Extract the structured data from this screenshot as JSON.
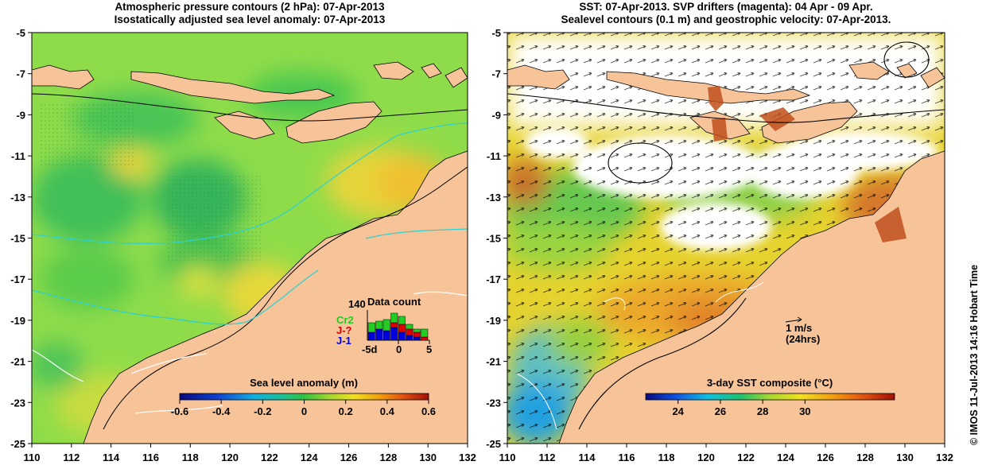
{
  "left_panel": {
    "title_line1": "Atmospheric pressure contours (2 hPa): 07-Apr-2013",
    "title_line2": "Isostatically adjusted sea level anomaly: 07-Apr-2013",
    "colorbar": {
      "title": "Sea level anomaly (m)",
      "tick_labels": [
        "-0.6",
        "-0.4",
        "-0.2",
        "0",
        "0.2",
        "0.4",
        "0.6"
      ]
    },
    "data_count": {
      "title": "Data count",
      "max_label": "140",
      "x_ticks": [
        "-5d",
        "0",
        "5"
      ],
      "missions": [
        {
          "name": "Cr2",
          "color": "#22cc22"
        },
        {
          "name": "J-?",
          "color": "#dd0000"
        },
        {
          "name": "J-1",
          "color": "#0000dd"
        }
      ]
    }
  },
  "right_panel": {
    "title_line1": "SST: 07-Apr-2013. SVP drifters (magenta): 04 Apr - 09 Apr.",
    "title_line2": "Sealevel contours (0.1 m) and geostrophic velocity: 07-Apr-2013.",
    "colorbar": {
      "title": "3-day SST composite (°C)",
      "tick_labels": [
        "24",
        "26",
        "28",
        "30"
      ]
    },
    "velocity_scale": {
      "label": "1 m/s",
      "sublabel": "(24hrs)"
    }
  },
  "axes": {
    "x_ticks": [
      "110",
      "112",
      "114",
      "116",
      "118",
      "120",
      "122",
      "124",
      "126",
      "128",
      "130",
      "132"
    ],
    "y_ticks": [
      "-5",
      "-7",
      "-9",
      "-11",
      "-13",
      "-15",
      "-17",
      "-19",
      "-21",
      "-23",
      "-25"
    ]
  },
  "credit": "© IMOS 11-Jul-2013 14:16 Hobart Time",
  "colors": {
    "land": "#f7c49a",
    "ocean_green": "#6fd250",
    "ocean_yellow": "#e6d830",
    "warm_orange": "#e88a1a",
    "cloud": "#ffffff"
  }
}
